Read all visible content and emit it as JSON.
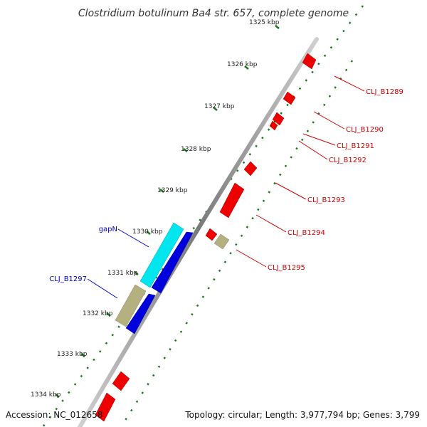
{
  "title": "Clostridium botulinum Ba4 str. 657, complete genome",
  "footer": {
    "accession": "Accession: NC_012658",
    "summary": "Topology: circular; Length: 3,977,794 bp; Genes: 3,799"
  },
  "colors": {
    "backbone": "#8a8a8a",
    "dots": "#1a7a1a",
    "forward_label": "#d40000",
    "reverse_label": "#0000cc",
    "gene_red": "#ee0000",
    "gene_cyan": "#00e5ee",
    "gene_blue": "#0000dd",
    "gene_olive": "#b5b080"
  },
  "tick_labels": [
    "1325 kbp",
    "1326 kbp",
    "1327 kbp",
    "1328 kbp",
    "1329 kbp",
    "1330 kbp",
    "1331 kbp",
    "1332 kbp",
    "1333 kbp",
    "1334 kbp"
  ],
  "gene_labels_right": [
    "CLJ_B1289",
    "CLJ_B1290",
    "CLJ_B1291",
    "CLJ_B1292",
    "CLJ_B1293",
    "CLJ_B1294",
    "CLJ_B1295"
  ],
  "gene_labels_left": [
    "gapN",
    "CLJ_B1297"
  ]
}
